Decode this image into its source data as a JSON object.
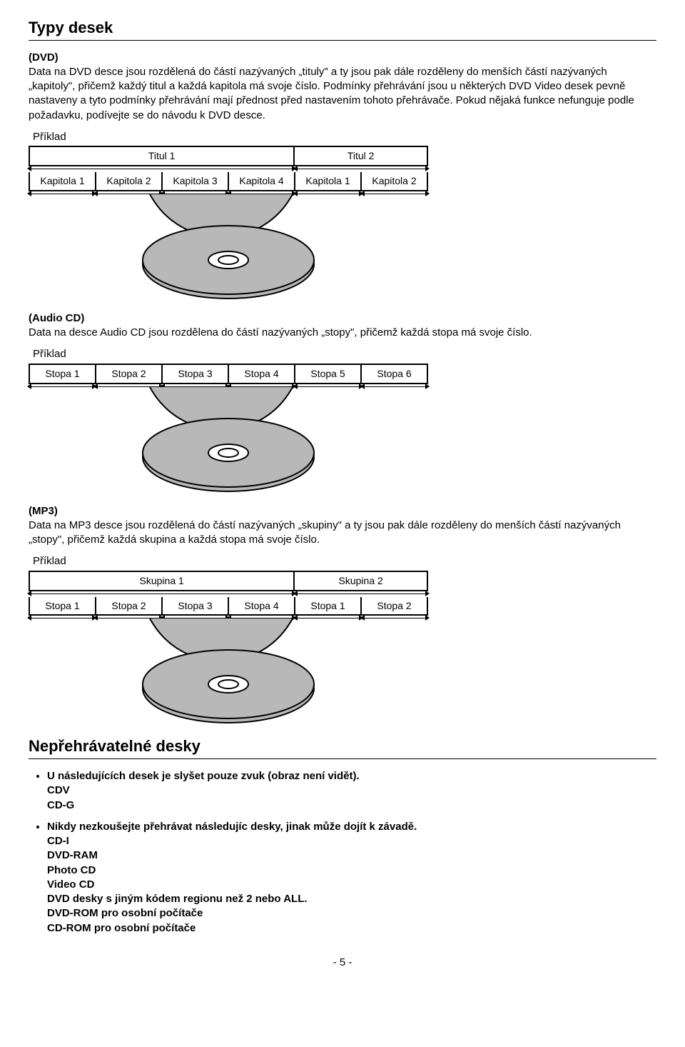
{
  "section1": {
    "title": "Typy desek",
    "dvd": {
      "heading": "(DVD)",
      "text": "Data na DVD desce jsou rozdělená do částí nazývaných „tituly\" a ty jsou pak dále rozděleny do menších částí nazývaných „kapitoly\", přičemž každý titul a každá kapitola má svoje číslo. Podmínky přehrávání jsou u některých DVD Video desek pevně nastaveny a tyto podmínky přehrávání mají přednost před nastavením tohoto přehrávače. Pokud nějaká funkce nefunguje podle požadavku, podívejte se do návodu k DVD desce.",
      "example": "Příklad",
      "topCells": [
        "Titul 1",
        "Titul 2"
      ],
      "topWidths": [
        4,
        2
      ],
      "botCells": [
        "Kapitola 1",
        "Kapitola 2",
        "Kapitola 3",
        "Kapitola 4",
        "Kapitola 1",
        "Kapitola 2"
      ]
    },
    "audio": {
      "heading": "(Audio CD)",
      "text": "Data na desce Audio CD jsou rozdělena do částí nazývaných „stopy\", přičemž každá stopa má svoje číslo.",
      "example": "Příklad",
      "cells": [
        "Stopa 1",
        "Stopa 2",
        "Stopa 3",
        "Stopa 4",
        "Stopa 5",
        "Stopa 6"
      ]
    },
    "mp3": {
      "heading": "(MP3)",
      "text": "Data na MP3 desce jsou rozdělená do částí nazývaných „skupiny\" a ty jsou pak dále rozděleny do menších částí nazývaných „stopy\", přičemž každá skupina a každá stopa má svoje číslo.",
      "example": "Příklad",
      "topCells": [
        "Skupina 1",
        "Skupina 2"
      ],
      "topWidths": [
        4,
        2
      ],
      "botCells": [
        "Stopa 1",
        "Stopa 2",
        "Stopa 3",
        "Stopa 4",
        "Stopa 1",
        "Stopa 2"
      ]
    }
  },
  "section2": {
    "title": "Nepřehrávatelné desky",
    "items": [
      {
        "lead": "U následujících desek je slyšet pouze zvuk (obraz není vidět).",
        "sub": [
          "CDV",
          "CD-G"
        ]
      },
      {
        "lead": "Nikdy nezkoušejte přehrávat následujíc desky, jinak může dojít k závadě.",
        "sub": [
          "CD-I",
          "DVD-RAM",
          "Photo CD",
          "Video CD",
          "DVD desky s jiným kódem regionu než 2 nebo ALL.",
          "DVD-ROM pro osobní počítače",
          "CD-ROM pro osobní počítače"
        ]
      }
    ]
  },
  "pageNumber": "- 5 -",
  "diagramStyle": {
    "discFill": "#b8b8b8",
    "discStroke": "#000000",
    "tongueFill": "#b8b8b8"
  }
}
